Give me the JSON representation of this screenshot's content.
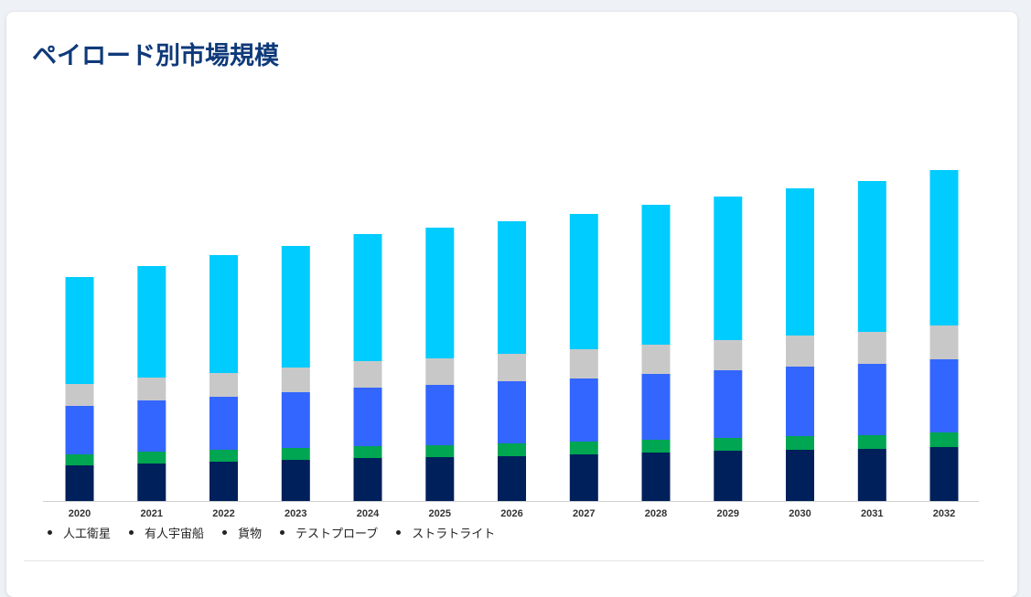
{
  "title": "ペイロード別市場規模",
  "chart_data": {
    "type": "bar",
    "stacked": true,
    "categories": [
      "2020",
      "2021",
      "2022",
      "2023",
      "2024",
      "2025",
      "2026",
      "2027",
      "2028",
      "2029",
      "2030",
      "2031",
      "2032"
    ],
    "series": [
      {
        "name": "人工衛星",
        "color": "#00205b",
        "values": [
          39,
          41,
          43,
          45,
          47,
          48,
          49,
          51,
          53,
          55,
          56,
          57,
          59
        ]
      },
      {
        "name": "有人宇宙船",
        "color": "#00a651",
        "values": [
          12,
          13,
          13,
          13,
          13,
          13,
          14,
          14,
          14,
          14,
          15,
          15,
          16
        ]
      },
      {
        "name": "貨物",
        "color": "#3366ff",
        "values": [
          53,
          56,
          58,
          61,
          64,
          66,
          68,
          69,
          72,
          74,
          76,
          78,
          80
        ]
      },
      {
        "name": "テストプローブ",
        "color": "#c8c8c8",
        "values": [
          24,
          25,
          26,
          27,
          29,
          29,
          30,
          32,
          32,
          33,
          34,
          35,
          37
        ]
      },
      {
        "name": "ストラトライト",
        "color": "#00ccff",
        "values": [
          117,
          122,
          129,
          133,
          139,
          143,
          145,
          148,
          153,
          157,
          161,
          165,
          170
        ]
      }
    ],
    "legend_position": "bottom-left",
    "grid": false
  },
  "legend": {
    "items": [
      "人工衛星",
      "有人宇宙船",
      "貨物",
      "テストプローブ",
      "ストラトライト"
    ]
  }
}
